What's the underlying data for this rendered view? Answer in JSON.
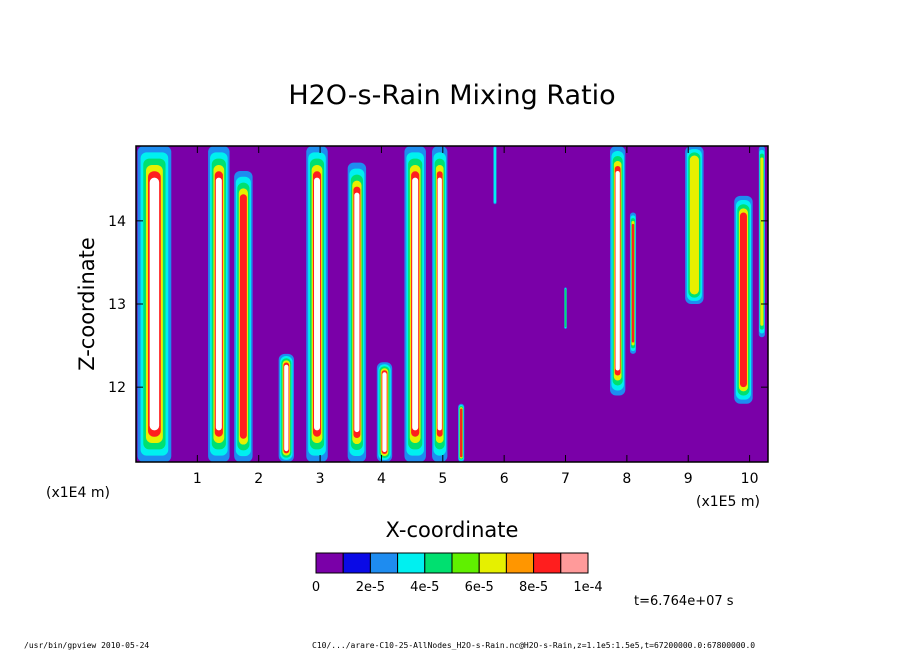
{
  "chart_data": {
    "type": "heatmap",
    "title": "H2O-s-Rain Mixing Ratio",
    "xlabel": "X-coordinate",
    "ylabel": "Z-coordinate",
    "x_unit_left": "(x1E4 m)",
    "x_unit_right": "(x1E5 m)",
    "xlim": [
      0,
      10.3
    ],
    "ylim": [
      11.1,
      14.9
    ],
    "x_ticks": [
      "1",
      "2",
      "3",
      "4",
      "5",
      "6",
      "7",
      "8",
      "9",
      "10"
    ],
    "x_tick_values": [
      1,
      2,
      3,
      4,
      5,
      6,
      7,
      8,
      9,
      10
    ],
    "y_ticks": [
      "12",
      "13",
      "14"
    ],
    "y_tick_values": [
      12,
      13,
      14
    ],
    "background_value": 0,
    "colorbar": {
      "colors": [
        "#7a00a8",
        "#0a0ae6",
        "#1e8cf0",
        "#00f0f0",
        "#00e070",
        "#60f000",
        "#e6f000",
        "#ff9600",
        "#ff1e1e",
        "#ff9a9a"
      ],
      "labels": [
        "0",
        "2e-5",
        "4e-5",
        "6e-5",
        "8e-5",
        "1e-4"
      ],
      "label_values": [
        0,
        2e-05,
        4e-05,
        6e-05,
        8e-05,
        0.0001
      ],
      "over_color": "#ffffff"
    },
    "features": [
      {
        "x": 0.3,
        "width": 0.55,
        "z0": 11.1,
        "z1": 14.9,
        "peak": 1
      },
      {
        "x": 1.35,
        "width": 0.35,
        "z0": 11.1,
        "z1": 14.9,
        "peak": 1
      },
      {
        "x": 1.75,
        "width": 0.3,
        "z0": 11.1,
        "z1": 14.6,
        "peak": 0.8
      },
      {
        "x": 2.45,
        "width": 0.25,
        "z0": 11.1,
        "z1": 12.4,
        "peak": 1
      },
      {
        "x": 2.95,
        "width": 0.35,
        "z0": 11.1,
        "z1": 14.9,
        "peak": 1
      },
      {
        "x": 3.6,
        "width": 0.3,
        "z0": 11.1,
        "z1": 14.7,
        "peak": 1
      },
      {
        "x": 4.05,
        "width": 0.25,
        "z0": 11.1,
        "z1": 12.3,
        "peak": 1
      },
      {
        "x": 4.55,
        "width": 0.35,
        "z0": 11.1,
        "z1": 14.9,
        "peak": 1
      },
      {
        "x": 4.95,
        "width": 0.25,
        "z0": 11.1,
        "z1": 14.9,
        "peak": 1
      },
      {
        "x": 5.3,
        "width": 0.1,
        "z0": 11.1,
        "z1": 11.8,
        "peak": 0.9
      },
      {
        "x": 5.85,
        "width": 0.05,
        "z0": 14.2,
        "z1": 14.9,
        "peak": 0.4
      },
      {
        "x": 7.0,
        "width": 0.04,
        "z0": 12.7,
        "z1": 13.2,
        "peak": 0.5
      },
      {
        "x": 7.85,
        "width": 0.25,
        "z0": 11.9,
        "z1": 14.9,
        "peak": 1
      },
      {
        "x": 8.1,
        "width": 0.1,
        "z0": 12.4,
        "z1": 14.1,
        "peak": 0.9
      },
      {
        "x": 9.1,
        "width": 0.3,
        "z0": 13.0,
        "z1": 14.9,
        "peak": 0.6
      },
      {
        "x": 9.9,
        "width": 0.3,
        "z0": 11.8,
        "z1": 14.3,
        "peak": 0.8
      },
      {
        "x": 10.2,
        "width": 0.1,
        "z0": 12.6,
        "z1": 14.9,
        "peak": 0.6
      }
    ]
  },
  "time_label": "t=6.764e+07 s",
  "footer": {
    "left": "/usr/bin/gpview   2010-05-24",
    "right": "C10/.../arare-C10-25-AllNodes_H2O-s-Rain.nc@H2O-s-Rain,z=1.1e5:1.5e5,t=67200000.0:67800000.0"
  }
}
